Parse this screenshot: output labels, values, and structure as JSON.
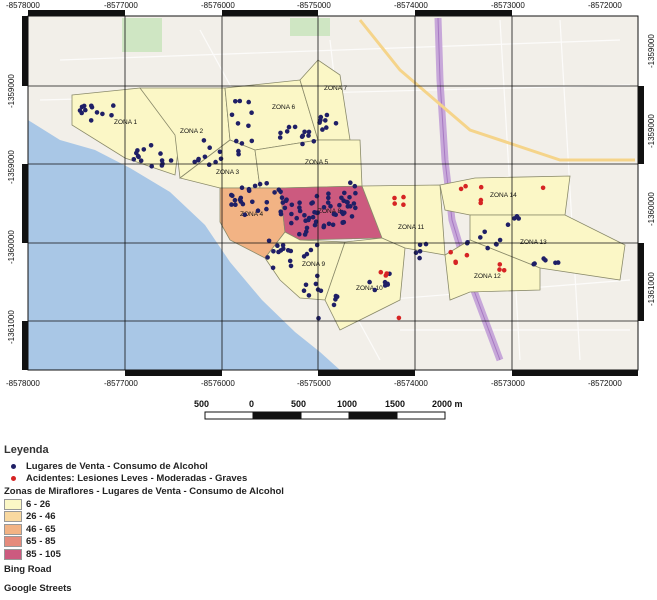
{
  "map": {
    "x_ticks_top": [
      "-8578000",
      "-8577000",
      "-8576000",
      "-8575000",
      "-8574000",
      "-8573000",
      "-8572000"
    ],
    "x_ticks_bottom": [
      "-8578000",
      "-8577000",
      "-8576000",
      "-8575000",
      "-8574000",
      "-8573000",
      "-8572000"
    ],
    "y_ticks_left": [
      "-1359000",
      "-1359000",
      "-1360000",
      "-1361000"
    ],
    "y_ticks_right": [
      "-1359000",
      "-1359000",
      "-1360000",
      "-1361000"
    ],
    "zones": [
      {
        "label": "ZONA 1",
        "class": "6 - 26"
      },
      {
        "label": "ZONA 2",
        "class": "6 - 26"
      },
      {
        "label": "ZONA 3",
        "class": "6 - 26"
      },
      {
        "label": "ZONA 4",
        "class": "46 - 65"
      },
      {
        "label": "ZONA 5",
        "class": "6 - 26"
      },
      {
        "label": "ZONA 6",
        "class": "6 - 26"
      },
      {
        "label": "ZONA 7",
        "class": "6 - 26"
      },
      {
        "label": "ZONA 8",
        "class": "85 - 105"
      },
      {
        "label": "ZONA 9",
        "class": "6 - 26"
      },
      {
        "label": "ZONA 10",
        "class": "6 - 26"
      },
      {
        "label": "ZONA 11",
        "class": "6 - 26"
      },
      {
        "label": "ZONA 12",
        "class": "6 - 26"
      },
      {
        "label": "ZONA 13",
        "class": "6 - 26"
      },
      {
        "label": "ZONA 14",
        "class": "6 - 26"
      }
    ],
    "colors": {
      "sea": "#a9c7e6",
      "land": "#f2efe9",
      "grid": "#111111",
      "venue_point": "#1f1f66",
      "accident_point": "#d62424",
      "highway": "#c7a7d9"
    }
  },
  "scalebar": {
    "labels": [
      "500",
      "0",
      "500",
      "1000",
      "1500",
      "2000 m"
    ]
  },
  "legend": {
    "title": "Leyenda",
    "venue": {
      "label": "Lugares de Venta - Consumo de Alcohol",
      "color": "#1f1f66"
    },
    "accident": {
      "label": "Acidentes: Lesiones Leves - Moderadas - Graves",
      "color": "#d62424"
    },
    "zones_title": "Zonas de Miraflores - Lugares de Venta - Consumo de Alcohol",
    "classes": [
      {
        "label": "6 - 26",
        "color": "#fbf7c6"
      },
      {
        "label": "26 - 46",
        "color": "#f9d9a0"
      },
      {
        "label": "46 - 65",
        "color": "#f2b384"
      },
      {
        "label": "65 - 85",
        "color": "#e58b7c"
      },
      {
        "label": "85 - 105",
        "color": "#cc5a7f"
      }
    ],
    "layers": [
      "Bing Road",
      "Google Streets"
    ]
  }
}
